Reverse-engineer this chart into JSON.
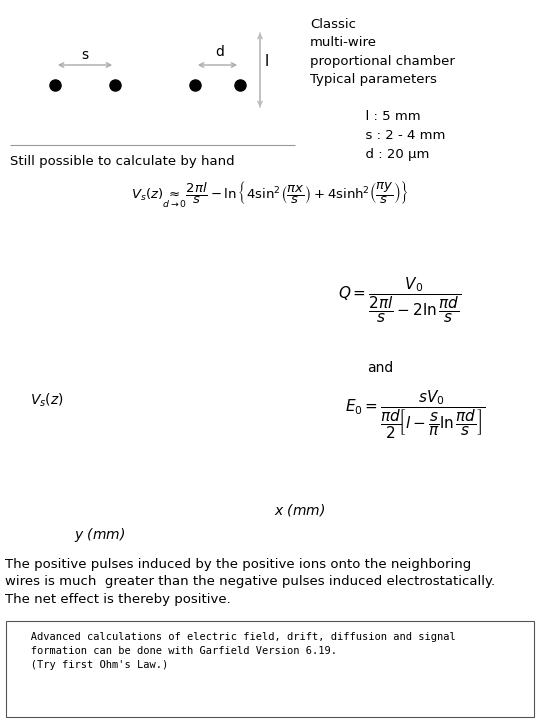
{
  "bg_color": "#ffffff",
  "classic_text": "Classic\nmulti-wire\nproportional chamber\nTypical parameters",
  "params_text": "      l : 5 mm\n      s : 2 - 4 mm\n      d : 20 μm",
  "still_possible": "Still possible to calculate by hand",
  "and_text": "and",
  "Vs_label": "$V_s(z)$",
  "x_label": "$x$ (mm)",
  "y_label": "$y$ (mm)",
  "desc_text": "The positive pulses induced by the positive ions onto the neighboring\nwires is much  greater than the negative pulses induced electrostatically.\nThe net effect is thereby positive.",
  "footer_text": "   Advanced calculations of electric field, drift, diffusion and signal\n   formation can be done with Garfield Version 6.19.\n   (Try first Ohm's Law.)"
}
